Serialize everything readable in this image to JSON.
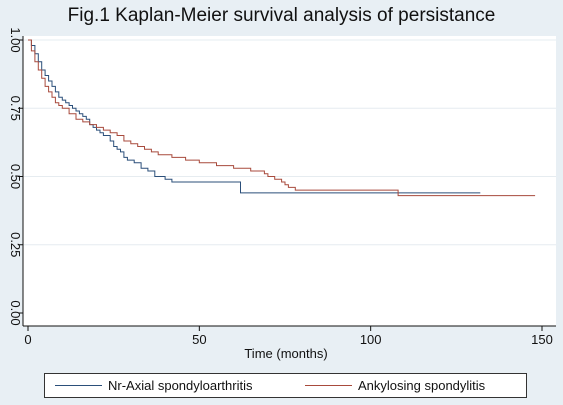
{
  "chart_data": {
    "type": "line",
    "title": "Fig.1 Kaplan-Meier survival analysis of persistance",
    "xlabel": "Time (months)",
    "ylabel": "",
    "xlim": [
      0,
      150
    ],
    "ylim": [
      0,
      1
    ],
    "x_ticks": [
      "0",
      "50",
      "100",
      "150"
    ],
    "y_ticks": [
      "0.00",
      "0.25",
      "0.50",
      "0.75",
      "1.00"
    ],
    "grid": "horizontal",
    "legend_position": "bottom",
    "series": [
      {
        "name": "Nr-Axial spondyloarthritis",
        "color": "#2b4f7a",
        "x": [
          0,
          1,
          2,
          3,
          4,
          5,
          6,
          7,
          8,
          9,
          10,
          11,
          12,
          13,
          14,
          15,
          16,
          17,
          18,
          19,
          20,
          21,
          22,
          24,
          25,
          26,
          27,
          28,
          29,
          31,
          33,
          35,
          37,
          40,
          42,
          62,
          108,
          132
        ],
        "y": [
          1.0,
          0.98,
          0.95,
          0.92,
          0.89,
          0.87,
          0.85,
          0.83,
          0.81,
          0.79,
          0.78,
          0.77,
          0.76,
          0.75,
          0.74,
          0.73,
          0.72,
          0.71,
          0.69,
          0.68,
          0.67,
          0.66,
          0.65,
          0.63,
          0.61,
          0.6,
          0.59,
          0.57,
          0.56,
          0.55,
          0.53,
          0.52,
          0.5,
          0.49,
          0.48,
          0.44,
          0.44,
          0.44
        ]
      },
      {
        "name": "Ankylosing spondylitis",
        "color": "#a84a3c",
        "x": [
          0,
          1,
          2,
          3,
          4,
          5,
          6,
          7,
          8,
          9,
          10,
          12,
          14,
          16,
          18,
          20,
          22,
          24,
          26,
          28,
          30,
          32,
          34,
          36,
          38,
          40,
          42,
          44,
          46,
          48,
          50,
          52,
          55,
          58,
          60,
          63,
          65,
          67,
          69,
          70,
          72,
          74,
          75,
          76,
          77,
          78,
          108,
          148
        ],
        "y": [
          1.0,
          0.96,
          0.92,
          0.89,
          0.86,
          0.83,
          0.81,
          0.79,
          0.77,
          0.76,
          0.75,
          0.73,
          0.71,
          0.7,
          0.69,
          0.68,
          0.67,
          0.66,
          0.65,
          0.63,
          0.62,
          0.61,
          0.6,
          0.59,
          0.58,
          0.58,
          0.57,
          0.57,
          0.56,
          0.56,
          0.55,
          0.55,
          0.54,
          0.54,
          0.53,
          0.53,
          0.52,
          0.52,
          0.51,
          0.5,
          0.49,
          0.48,
          0.47,
          0.46,
          0.46,
          0.45,
          0.43,
          0.43
        ]
      }
    ]
  }
}
